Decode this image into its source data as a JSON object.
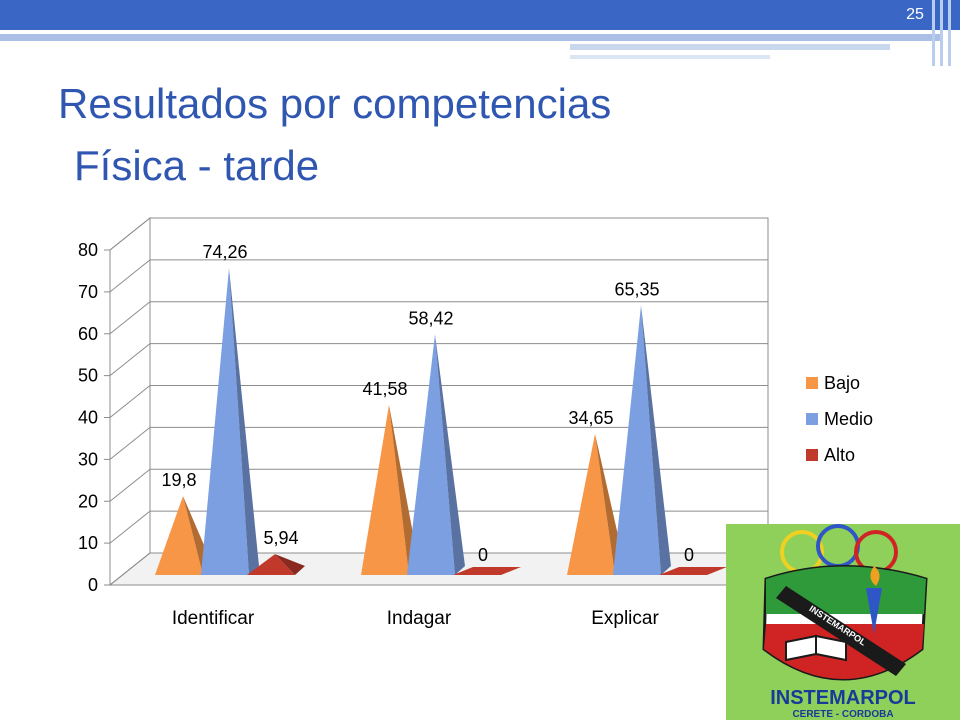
{
  "slide": {
    "number": "25",
    "title": "Resultados por competencias",
    "subtitle": "Física - tarde"
  },
  "logo": {
    "name": "INSTEMARPOL",
    "location": "CERETE - CORDOBA",
    "banner_text": "INSTEMARPOL"
  },
  "chart_data": {
    "type": "bar",
    "style": "3d-pyramid",
    "categories": [
      "Identificar",
      "Indagar",
      "Explicar"
    ],
    "series": [
      {
        "name": "Bajo",
        "color": "#f79646",
        "values": [
          19.8,
          41.58,
          34.65
        ],
        "labels": [
          "19,8",
          "41,58",
          "34,65"
        ]
      },
      {
        "name": "Medio",
        "color": "#7b9fe0",
        "values": [
          74.26,
          58.42,
          65.35
        ],
        "labels": [
          "74,26",
          "58,42",
          "65,35"
        ]
      },
      {
        "name": "Alto",
        "color": "#c0392b",
        "values": [
          5.94,
          0,
          0
        ],
        "labels": [
          "5,94",
          "0",
          "0"
        ]
      }
    ],
    "ylim": [
      0,
      80
    ],
    "yticks": [
      "0",
      "10",
      "20",
      "30",
      "40",
      "50",
      "60",
      "70",
      "80"
    ],
    "grid": true,
    "legend": "right"
  }
}
